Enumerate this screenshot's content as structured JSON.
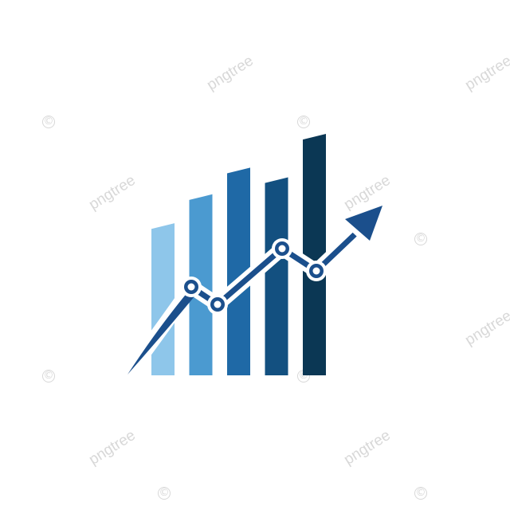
{
  "logo": {
    "name": "growth-chart-logo",
    "bar_levels": [
      0.63,
      0.75,
      0.86,
      0.82,
      1.0
    ],
    "bar_colors": [
      "#8ec6ea",
      "#4b9ad0",
      "#1f69a6",
      "#135080",
      "#0b3754"
    ],
    "line_color": "#1b4f8c",
    "outline_color": "#ffffff"
  },
  "watermark": {
    "text": "pngtree",
    "color": "#d4d4d4"
  }
}
